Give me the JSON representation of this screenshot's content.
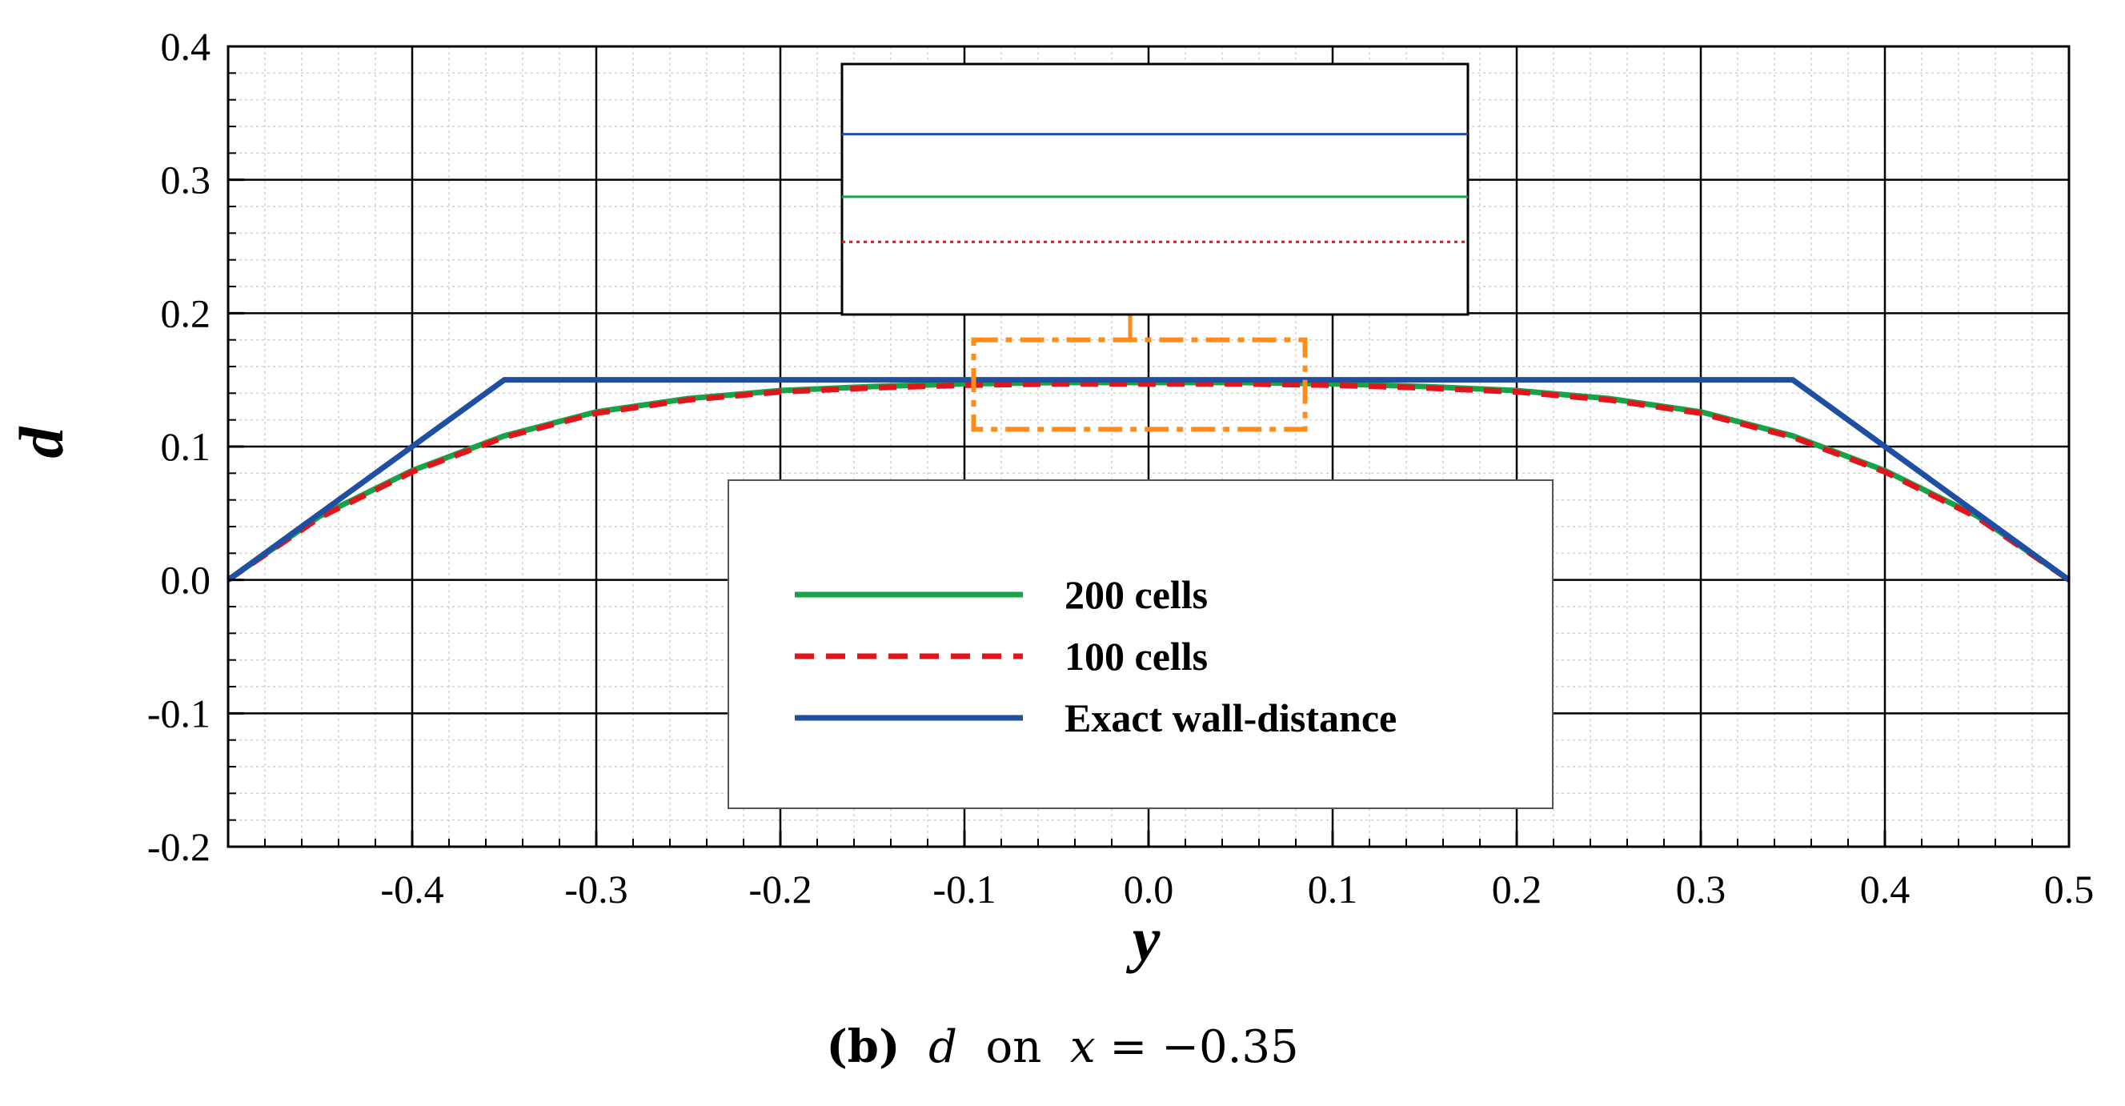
{
  "chart_data": {
    "type": "line",
    "xlabel": "y",
    "ylabel": "d",
    "xlim": [
      -0.5,
      0.5
    ],
    "ylim": [
      -0.2,
      0.4
    ],
    "xticks": [
      -0.4,
      -0.3,
      -0.2,
      -0.1,
      0.0,
      0.1,
      0.2,
      0.3,
      0.4,
      0.5
    ],
    "xtick_labels": [
      "-0.4",
      "-0.3",
      "-0.2",
      "-0.1",
      "0.0",
      "0.1",
      "0.2",
      "0.3",
      "0.4",
      "0.5"
    ],
    "yticks": [
      -0.2,
      -0.1,
      0.0,
      0.1,
      0.2,
      0.3,
      0.4
    ],
    "ytick_labels": [
      "-0.2",
      "-0.1",
      "0.0",
      "0.1",
      "0.2",
      "0.3",
      "0.4"
    ],
    "grid": true,
    "legend_position": "center-right",
    "series": [
      {
        "name": "200 cells",
        "color": "#17a34a",
        "style": "solid",
        "x": [
          -0.5,
          -0.45,
          -0.4,
          -0.35,
          -0.3,
          -0.25,
          -0.2,
          -0.15,
          -0.1,
          -0.05,
          0.0,
          0.05,
          0.1,
          0.15,
          0.2,
          0.25,
          0.3,
          0.35,
          0.4,
          0.45,
          0.5
        ],
        "y": [
          0.0,
          0.048,
          0.082,
          0.108,
          0.126,
          0.136,
          0.142,
          0.145,
          0.147,
          0.148,
          0.148,
          0.148,
          0.147,
          0.145,
          0.142,
          0.136,
          0.126,
          0.108,
          0.082,
          0.048,
          0.0
        ]
      },
      {
        "name": "100 cells",
        "color": "#e3141b",
        "style": "dashed",
        "x": [
          -0.5,
          -0.45,
          -0.4,
          -0.35,
          -0.3,
          -0.25,
          -0.2,
          -0.15,
          -0.1,
          -0.05,
          0.0,
          0.05,
          0.1,
          0.15,
          0.2,
          0.25,
          0.3,
          0.35,
          0.4,
          0.45,
          0.5
        ],
        "y": [
          0.0,
          0.047,
          0.081,
          0.107,
          0.125,
          0.135,
          0.141,
          0.144,
          0.146,
          0.147,
          0.147,
          0.147,
          0.146,
          0.144,
          0.141,
          0.135,
          0.125,
          0.107,
          0.081,
          0.047,
          0.0
        ]
      },
      {
        "name": "Exact wall-distance",
        "color": "#1f4fa3",
        "style": "solid",
        "x": [
          -0.5,
          -0.35,
          0.35,
          0.5
        ],
        "y": [
          0.0,
          0.15,
          0.15,
          0.0
        ]
      }
    ],
    "zoom_box": {
      "x": [
        -0.095,
        0.085
      ],
      "y": [
        0.113,
        0.18
      ],
      "color": "#ff8c1a"
    },
    "inset": {
      "lines": [
        {
          "series": "Exact wall-distance",
          "level": 0.72
        },
        {
          "series": "200 cells",
          "level": 0.47
        },
        {
          "series": "100 cells",
          "level": 0.29
        }
      ]
    }
  },
  "caption": {
    "label": "(b)",
    "var": "d",
    "on": "on",
    "eq_var": "x",
    "eq_rest": "= −0.35"
  }
}
